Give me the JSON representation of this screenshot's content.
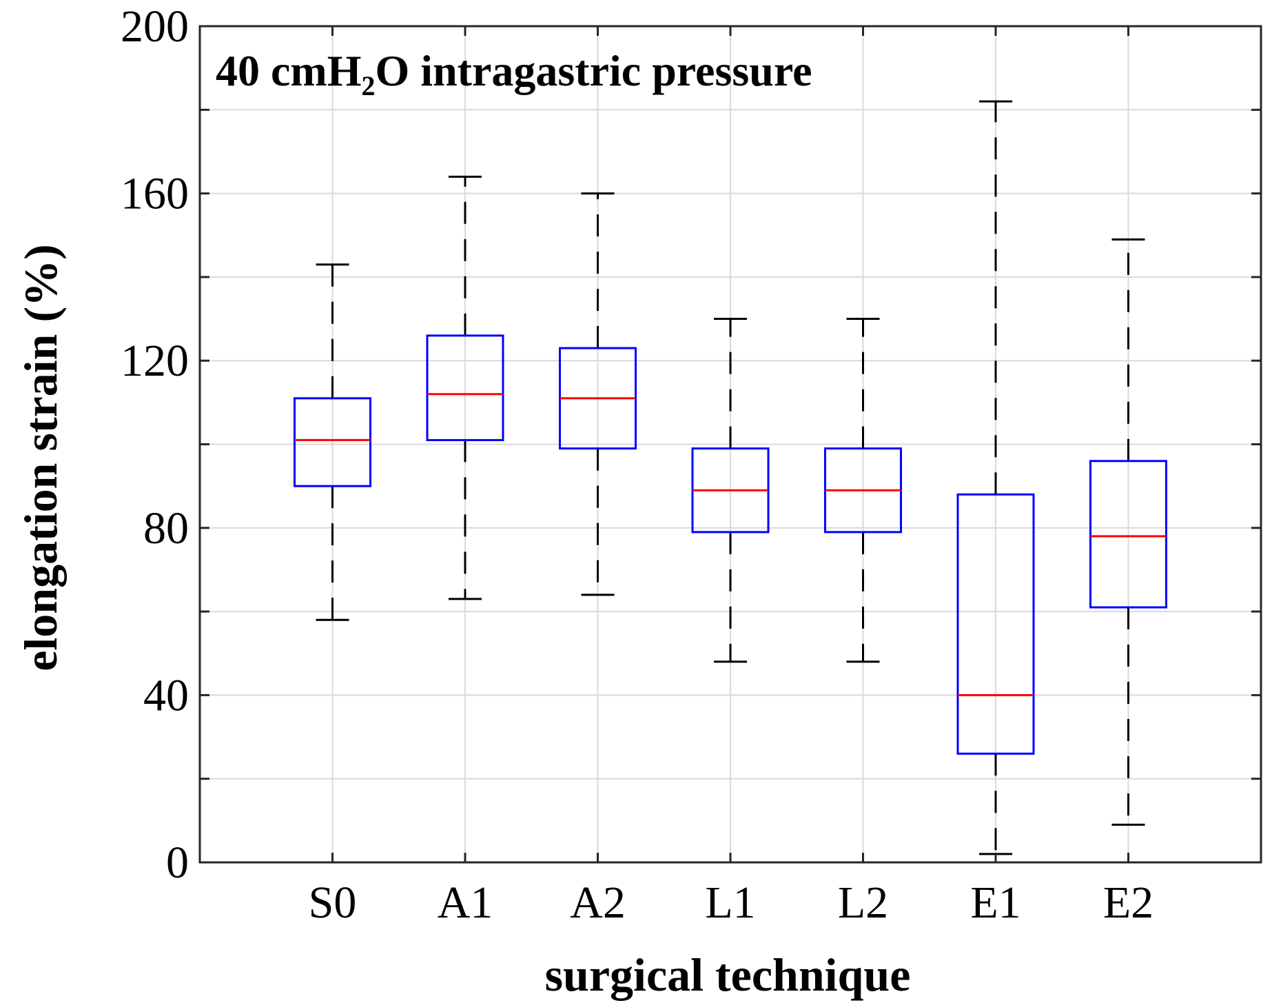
{
  "chart_data": {
    "type": "box",
    "title": {
      "prefix": "40 cmH",
      "subscript": "2",
      "suffix": "O intragastric pressure"
    },
    "xlabel": "surgical technique",
    "ylabel": "elongation strain (%)",
    "ylim": [
      0,
      200
    ],
    "yticks": [
      0,
      40,
      80,
      120,
      160,
      200
    ],
    "yticks_minor": [
      20,
      60,
      100,
      140,
      180
    ],
    "grid": true,
    "categories": [
      "S0",
      "A1",
      "A2",
      "L1",
      "L2",
      "E1",
      "E2"
    ],
    "boxes": [
      {
        "label": "S0",
        "whisker_low": 58,
        "q1": 90,
        "median": 101,
        "q3": 111,
        "whisker_high": 143
      },
      {
        "label": "A1",
        "whisker_low": 63,
        "q1": 101,
        "median": 112,
        "q3": 126,
        "whisker_high": 164
      },
      {
        "label": "A2",
        "whisker_low": 64,
        "q1": 99,
        "median": 111,
        "q3": 123,
        "whisker_high": 160
      },
      {
        "label": "L1",
        "whisker_low": 48,
        "q1": 79,
        "median": 89,
        "q3": 99,
        "whisker_high": 130
      },
      {
        "label": "L2",
        "whisker_low": 48,
        "q1": 79,
        "median": 89,
        "q3": 99,
        "whisker_high": 130
      },
      {
        "label": "E1",
        "whisker_low": 2,
        "q1": 26,
        "median": 40,
        "q3": 88,
        "whisker_high": 182
      },
      {
        "label": "E2",
        "whisker_low": 9,
        "q1": 61,
        "median": 78,
        "q3": 96,
        "whisker_high": 149
      }
    ],
    "colors": {
      "box": "#0000ff",
      "median": "#ff0000",
      "whisker": "#000000",
      "grid": "#d9d9d9",
      "axis": "#262626"
    }
  }
}
